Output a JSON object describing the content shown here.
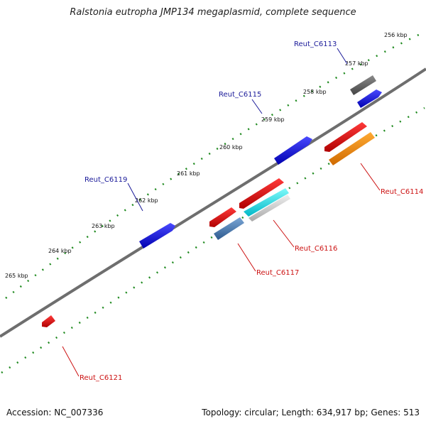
{
  "title": "Ralstonia eutropha JMP134 megaplasmid, complete sequence",
  "footer": {
    "accession": "Accession: NC_007336",
    "summary": "Topology: circular; Length: 634,917 bp; Genes: 513"
  },
  "ticks": [
    "256 kbp",
    "257 kbp",
    "258 kbp",
    "259 kbp",
    "260 kbp",
    "261 kbp",
    "262 kbp",
    "263 kbp",
    "264 kbp",
    "265 kbp"
  ],
  "gene_labels": {
    "top": [
      "Reut_C6113",
      "Reut_C6115",
      "Reut_C6119"
    ],
    "bottom": [
      "Reut_C6114",
      "Reut_C6116",
      "Reut_C6117",
      "Reut_C6121"
    ]
  },
  "colors": {
    "blue_feature": "#1a1ae6",
    "red_feature": "#e61010",
    "grey_feature": "#606060",
    "orange_feature": "#f08a00",
    "cyan_feature": "#00e0e0",
    "steel_feature": "#4a7ab0",
    "light_grey_feature": "#c8c8c8",
    "backbone": "#6e6e6e",
    "tick_green": "#1f8a1f",
    "label_blue": "#1a1a99",
    "label_red": "#cc1111"
  }
}
